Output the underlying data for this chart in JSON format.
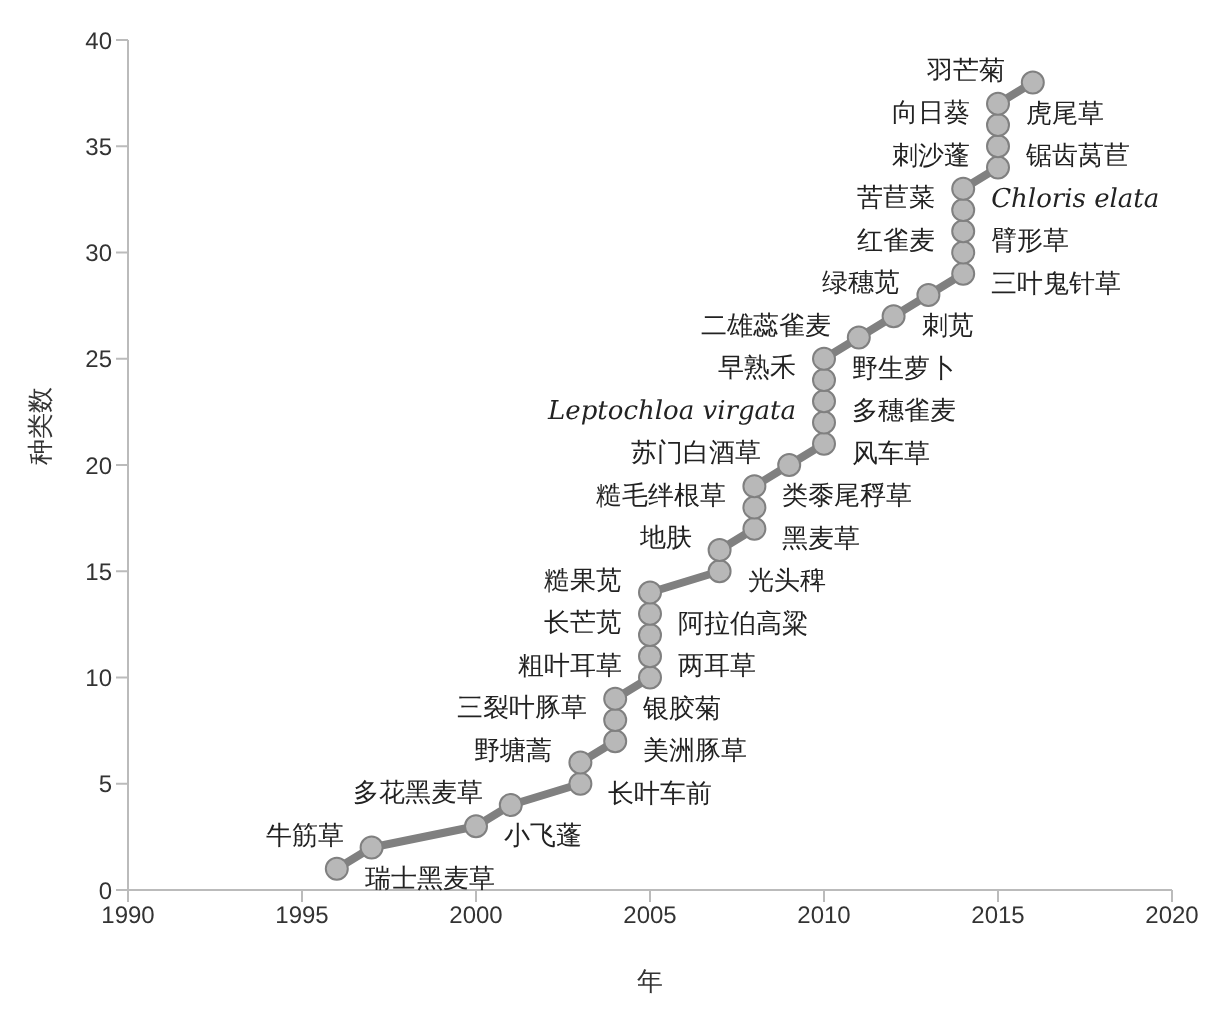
{
  "chart_data": {
    "type": "line",
    "xlabel": "年",
    "ylabel": "种类数",
    "x": [
      1996,
      1997,
      2000,
      2001,
      2003,
      2003,
      2004,
      2004,
      2004,
      2005,
      2005,
      2005,
      2005,
      2005,
      2007,
      2007,
      2008,
      2008,
      2008,
      2009,
      2010,
      2010,
      2010,
      2010,
      2010,
      2011,
      2012,
      2013,
      2014,
      2014,
      2014,
      2014,
      2014,
      2015,
      2015,
      2015,
      2015,
      2016
    ],
    "series": [
      {
        "color": "#808080",
        "values": [
          1,
          2,
          3,
          4,
          5,
          6,
          7,
          8,
          9,
          10,
          11,
          12,
          13,
          14,
          15,
          16,
          17,
          18,
          19,
          20,
          21,
          22,
          23,
          24,
          25,
          26,
          27,
          28,
          29,
          30,
          31,
          32,
          33,
          34,
          35,
          36,
          37,
          38
        ]
      }
    ],
    "xlim": [
      1990,
      2020
    ],
    "xticks": [
      1990,
      1995,
      2000,
      2005,
      2010,
      2015,
      2020
    ],
    "ylim": [
      0,
      40
    ],
    "yticks": [
      0,
      5,
      10,
      15,
      20,
      25,
      30,
      35,
      40
    ],
    "grid": false,
    "legend": false,
    "marker": "circle",
    "line_style": "solid",
    "annotations": [
      {
        "text": "瑞士黑麦草",
        "x": 1996,
        "y": 1
      },
      {
        "text": "牛筋草",
        "x": 1997,
        "y": 2
      },
      {
        "text": "小飞蓬",
        "x": 2000,
        "y": 3
      },
      {
        "text": "多花黑麦草",
        "x": 2001,
        "y": 4
      },
      {
        "text": "长叶车前",
        "x": 2003,
        "y": 5
      },
      {
        "text": "野塘蒿",
        "x": 2003,
        "y": 6
      },
      {
        "text": "美洲豚草",
        "x": 2004,
        "y": 7
      },
      {
        "text": "三裂叶豚草",
        "x": 2004,
        "y": 8
      },
      {
        "text": "银胶菊",
        "x": 2004,
        "y": 9
      },
      {
        "text": "粗叶耳草",
        "x": 2005,
        "y": 10
      },
      {
        "text": "两耳草",
        "x": 2005,
        "y": 11
      },
      {
        "text": "长芒苋",
        "x": 2005,
        "y": 12
      },
      {
        "text": "阿拉伯高粱",
        "x": 2005,
        "y": 13
      },
      {
        "text": "糙果苋",
        "x": 2005,
        "y": 14
      },
      {
        "text": "光头稗",
        "x": 2007,
        "y": 15
      },
      {
        "text": "地肤",
        "x": 2007,
        "y": 16
      },
      {
        "text": "黑麦草",
        "x": 2008,
        "y": 17
      },
      {
        "text": "糙毛绊根草",
        "x": 2008,
        "y": 18
      },
      {
        "text": "类黍尾稃草",
        "x": 2008,
        "y": 19
      },
      {
        "text": "苏门白酒草",
        "x": 2009,
        "y": 20
      },
      {
        "text": "风车草",
        "x": 2010,
        "y": 21
      },
      {
        "text": "Leptochloa virgata",
        "x": 2010,
        "y": 22
      },
      {
        "text": "多穗雀麦",
        "x": 2010,
        "y": 23
      },
      {
        "text": "早熟禾",
        "x": 2010,
        "y": 24
      },
      {
        "text": "野生萝卜",
        "x": 2010,
        "y": 25
      },
      {
        "text": "二雄蕊雀麦",
        "x": 2011,
        "y": 26
      },
      {
        "text": "刺苋",
        "x": 2012,
        "y": 27
      },
      {
        "text": "绿穗苋",
        "x": 2013,
        "y": 28
      },
      {
        "text": "三叶鬼针草",
        "x": 2014,
        "y": 29
      },
      {
        "text": "红雀麦",
        "x": 2014,
        "y": 30
      },
      {
        "text": "臂形草",
        "x": 2014,
        "y": 31
      },
      {
        "text": "苦苣菜",
        "x": 2014,
        "y": 32
      },
      {
        "text": "Chloris elata",
        "x": 2014,
        "y": 33
      },
      {
        "text": "刺沙蓬",
        "x": 2015,
        "y": 34
      },
      {
        "text": "锯齿莴苣",
        "x": 2015,
        "y": 35
      },
      {
        "text": "向日葵",
        "x": 2015,
        "y": 36
      },
      {
        "text": "虎尾草",
        "x": 2015,
        "y": 37
      },
      {
        "text": "羽芒菊",
        "x": 2016,
        "y": 38
      }
    ]
  }
}
